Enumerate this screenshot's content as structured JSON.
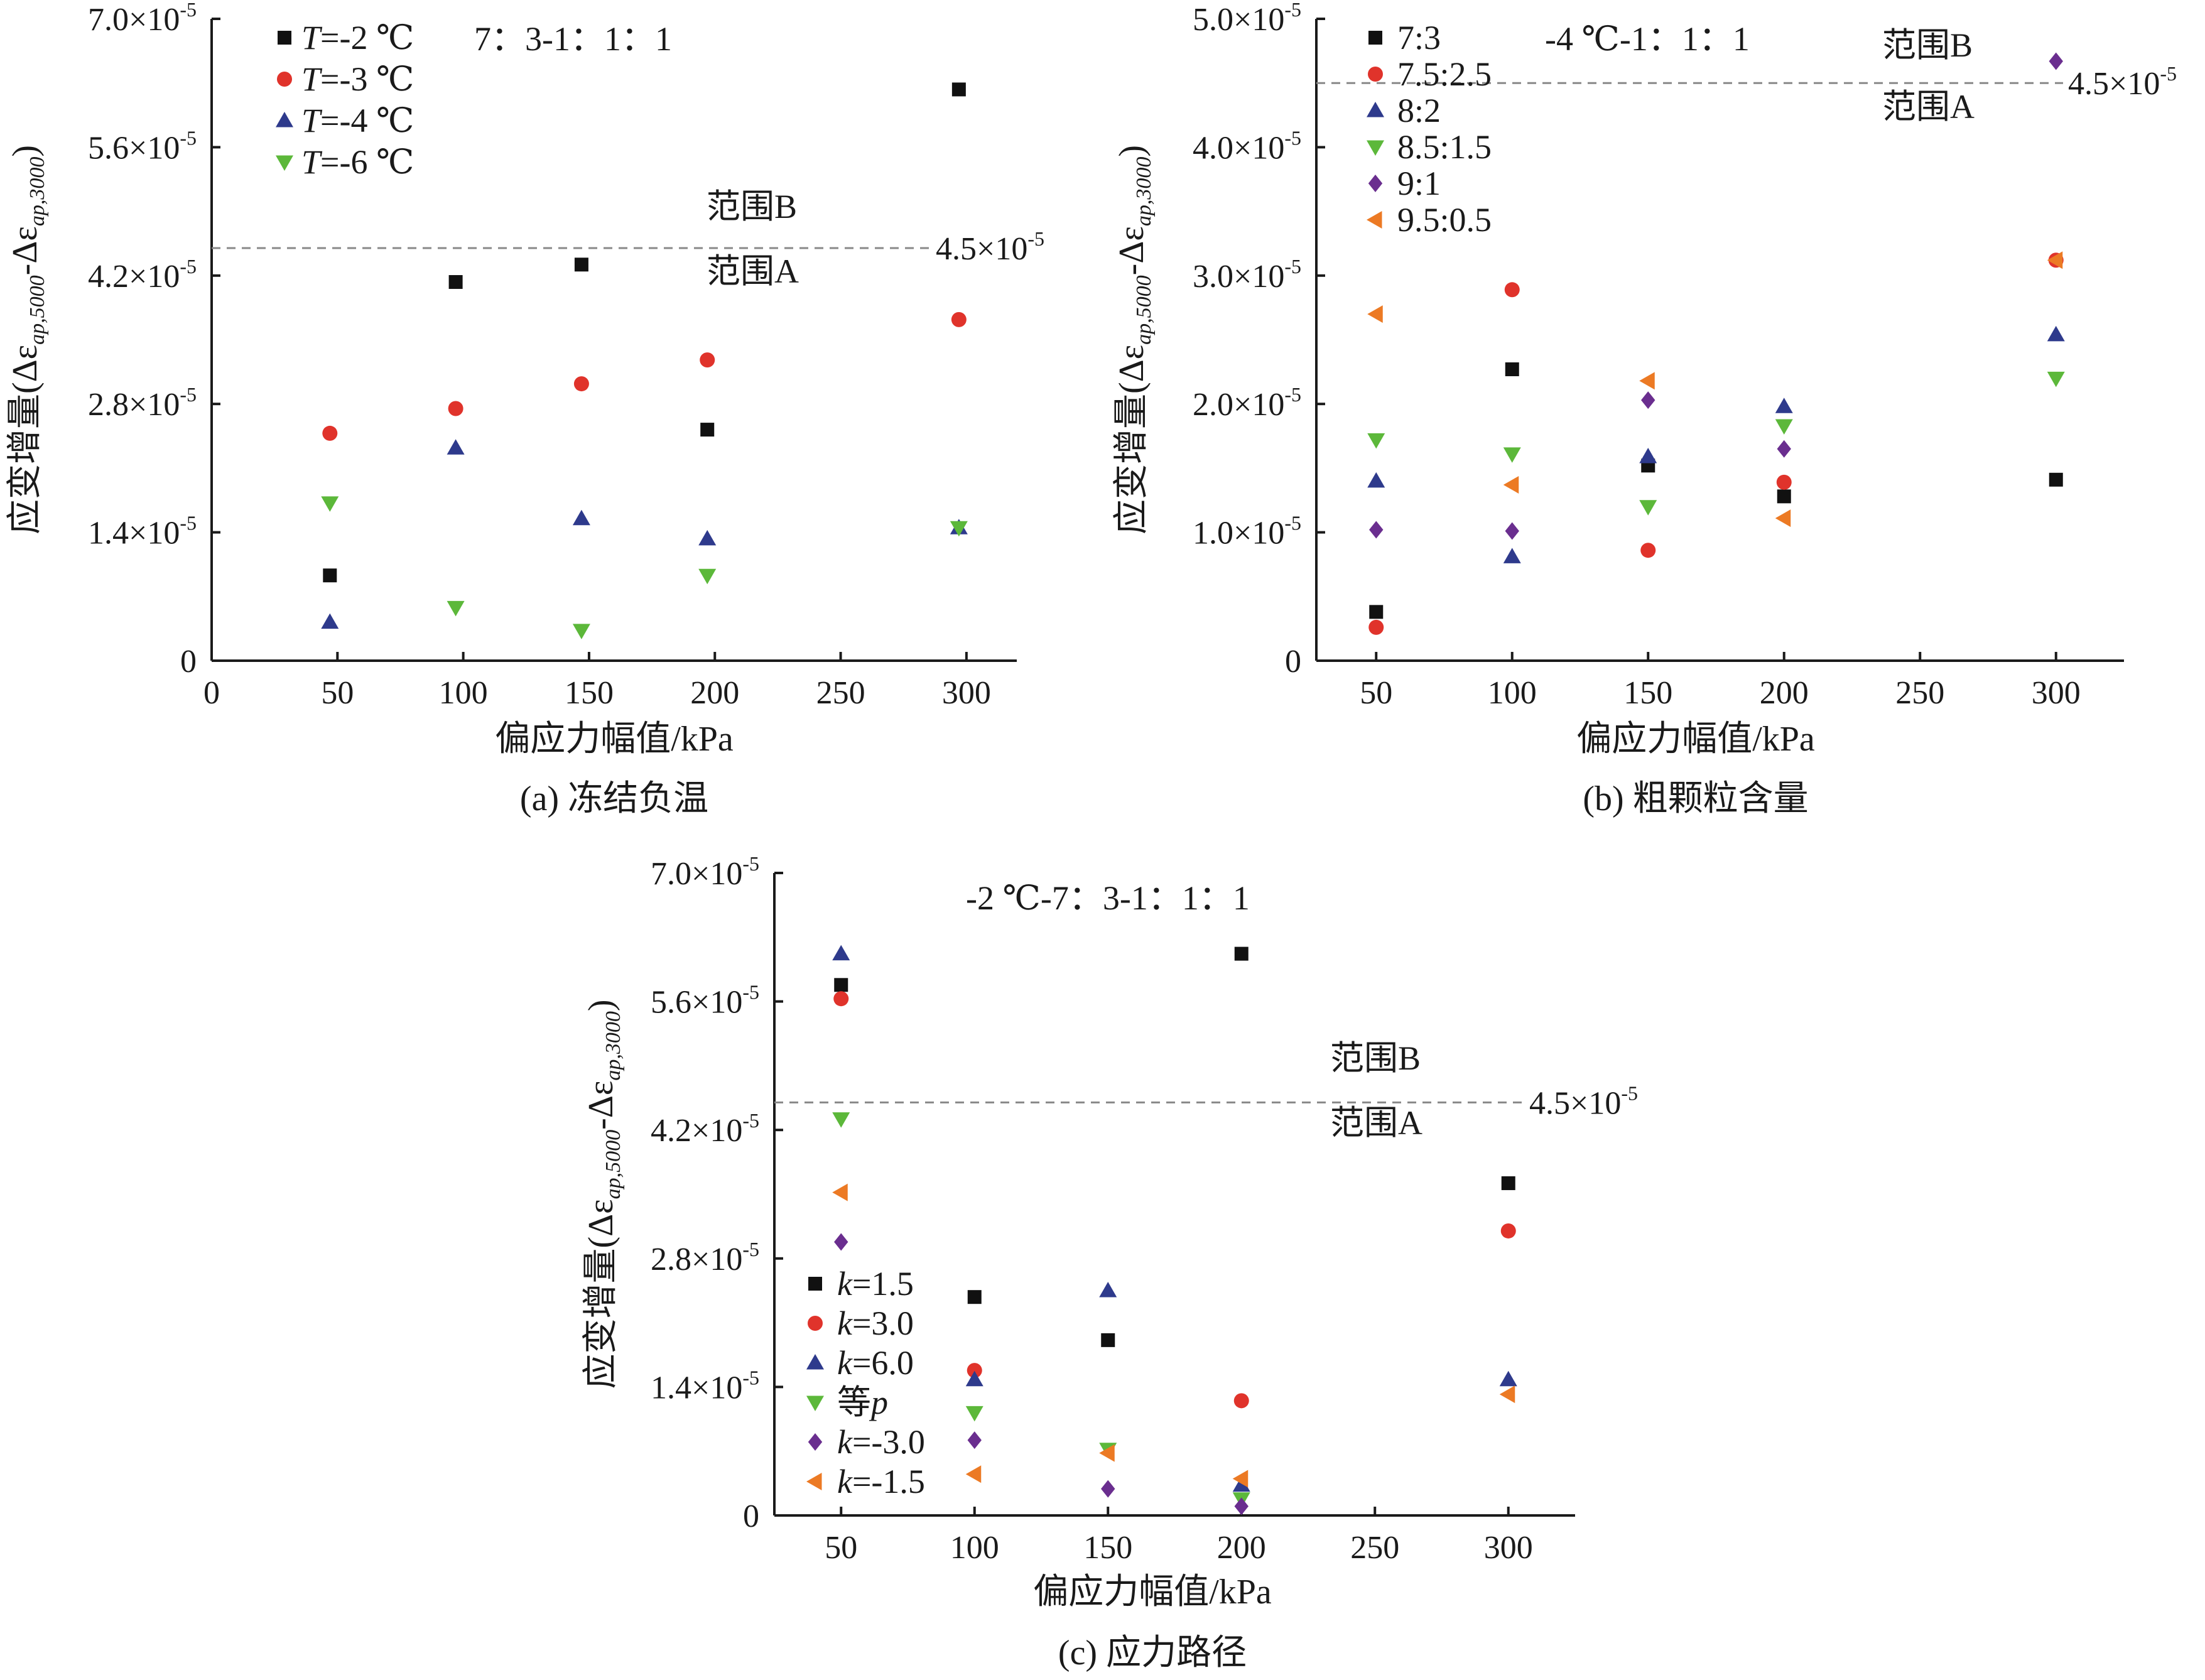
{
  "chart_data": [
    {
      "id": "a",
      "type": "scatter",
      "caption": "(a) 冻结负温",
      "xlabel": "偏应力幅值/kPa",
      "ylabel_main": "应变增量",
      "ylabel_formula": [
        "(Δε",
        "ap,5000",
        "-Δε",
        "ap,3000",
        ")"
      ],
      "xlim": [
        0,
        320
      ],
      "ylim": [
        0,
        7e-05
      ],
      "xticks": [
        0,
        50,
        100,
        150,
        200,
        250,
        300
      ],
      "xtick_labels": [
        "0",
        "50",
        "100",
        "150",
        "200",
        "250",
        "300"
      ],
      "yticks": [
        0,
        1.4e-05,
        2.8e-05,
        4.2e-05,
        5.6e-05,
        7e-05
      ],
      "ytick_labels": [
        {
          "mant": "0",
          "exp": ""
        },
        {
          "mant": "1.4×10",
          "exp": "-5"
        },
        {
          "mant": "2.8×10",
          "exp": "-5"
        },
        {
          "mant": "4.2×10",
          "exp": "-5"
        },
        {
          "mant": "5.6×10",
          "exp": "-5"
        },
        {
          "mant": "7.0×10",
          "exp": "-5"
        }
      ],
      "annotation": "7：3-1：1：1",
      "threshold": {
        "value": 4.5e-05,
        "label": "4.5×10",
        "label_exp": "-5",
        "above": "范围B",
        "below": "范围A"
      },
      "series": [
        {
          "name": "T=-2 ℃",
          "legend_pre": "T",
          "legend_post": "=-2 ℃",
          "italic_pre": true,
          "marker": "square",
          "color": "#111111",
          "points": [
            [
              47,
              9.3e-06
            ],
            [
              97,
              4.13e-05
            ],
            [
              147,
              4.32e-05
            ],
            [
              197,
              2.52e-05
            ],
            [
              297,
              6.23e-05
            ]
          ]
        },
        {
          "name": "T=-3 ℃",
          "legend_pre": "T",
          "legend_post": "=-3 ℃",
          "italic_pre": true,
          "marker": "circle",
          "color": "#e0332b",
          "points": [
            [
              47,
              2.48e-05
            ],
            [
              97,
              2.75e-05
            ],
            [
              147,
              3.02e-05
            ],
            [
              197,
              3.28e-05
            ],
            [
              297,
              3.72e-05
            ]
          ]
        },
        {
          "name": "T=-4 ℃",
          "legend_pre": "T",
          "legend_post": "=-4 ℃",
          "italic_pre": true,
          "marker": "triangle-up",
          "color": "#2e3a8c",
          "points": [
            [
              47,
              4.2e-06
            ],
            [
              97,
              2.32e-05
            ],
            [
              147,
              1.55e-05
            ],
            [
              197,
              1.33e-05
            ],
            [
              297,
              1.45e-05
            ]
          ]
        },
        {
          "name": "T=-6 ℃",
          "legend_pre": "T",
          "legend_post": "=-6 ℃",
          "italic_pre": true,
          "marker": "triangle-down",
          "color": "#5cb83a",
          "points": [
            [
              47,
              1.72e-05
            ],
            [
              97,
              5.8e-06
            ],
            [
              147,
              3.3e-06
            ],
            [
              197,
              9.3e-06
            ],
            [
              297,
              1.45e-05
            ]
          ]
        }
      ]
    },
    {
      "id": "b",
      "type": "scatter",
      "caption": "(b) 粗颗粒含量",
      "xlabel": "偏应力幅值/kPa",
      "ylabel_main": "应变增量",
      "ylabel_formula": [
        "(Δε",
        "ap,5000",
        "-Δε",
        "ap,3000",
        ")"
      ],
      "xlim": [
        28,
        325
      ],
      "ylim": [
        0,
        5e-05
      ],
      "xticks": [
        50,
        100,
        150,
        200,
        250,
        300
      ],
      "xtick_labels": [
        "50",
        "100",
        "150",
        "200",
        "250",
        "300"
      ],
      "yticks": [
        0,
        1e-05,
        2e-05,
        3e-05,
        4e-05,
        5e-05
      ],
      "ytick_labels": [
        {
          "mant": "0",
          "exp": ""
        },
        {
          "mant": "1.0×10",
          "exp": "-5"
        },
        {
          "mant": "2.0×10",
          "exp": "-5"
        },
        {
          "mant": "3.0×10",
          "exp": "-5"
        },
        {
          "mant": "4.0×10",
          "exp": "-5"
        },
        {
          "mant": "5.0×10",
          "exp": "-5"
        }
      ],
      "annotation": "-4 ℃-1：1：1",
      "threshold": {
        "value": 4.5e-05,
        "label": "4.5×10",
        "label_exp": "-5",
        "above": "范围B",
        "below": "范围A"
      },
      "series": [
        {
          "name": "7:3",
          "legend_pre": "",
          "legend_post": "7:3",
          "italic_pre": false,
          "marker": "square",
          "color": "#111111",
          "points": [
            [
              50,
              3.8e-06
            ],
            [
              100,
              2.27e-05
            ],
            [
              150,
              1.52e-05
            ],
            [
              200,
              1.28e-05
            ],
            [
              300,
              1.41e-05
            ]
          ]
        },
        {
          "name": "7.5:2.5",
          "legend_pre": "",
          "legend_post": "7.5:2.5",
          "italic_pre": false,
          "marker": "circle",
          "color": "#e0332b",
          "points": [
            [
              50,
              2.6e-06
            ],
            [
              100,
              2.89e-05
            ],
            [
              150,
              8.6e-06
            ],
            [
              200,
              1.39e-05
            ],
            [
              300,
              3.12e-05
            ]
          ]
        },
        {
          "name": "8:2",
          "legend_pre": "",
          "legend_post": "8:2",
          "italic_pre": false,
          "marker": "triangle-up",
          "color": "#2e3a8c",
          "points": [
            [
              50,
              1.4e-05
            ],
            [
              100,
              8.1e-06
            ],
            [
              150,
              1.59e-05
            ],
            [
              200,
              1.98e-05
            ],
            [
              300,
              2.54e-05
            ]
          ]
        },
        {
          "name": "8.5:1.5",
          "legend_pre": "",
          "legend_post": "8.5:1.5",
          "italic_pre": false,
          "marker": "triangle-down",
          "color": "#5cb83a",
          "points": [
            [
              50,
              1.72e-05
            ],
            [
              100,
              1.61e-05
            ],
            [
              150,
              1.2e-05
            ],
            [
              200,
              1.83e-05
            ],
            [
              300,
              2.2e-05
            ]
          ]
        },
        {
          "name": "9:1",
          "legend_pre": "",
          "legend_post": "9:1",
          "italic_pre": false,
          "marker": "diamond",
          "color": "#6a2e8f",
          "points": [
            [
              50,
              1.02e-05
            ],
            [
              100,
              1.01e-05
            ],
            [
              150,
              2.03e-05
            ],
            [
              200,
              1.65e-05
            ],
            [
              300,
              4.67e-05
            ]
          ]
        },
        {
          "name": "9.5:0.5",
          "legend_pre": "",
          "legend_post": "9.5:0.5",
          "italic_pre": false,
          "marker": "triangle-left",
          "color": "#ec7a24",
          "points": [
            [
              50,
              2.7e-05
            ],
            [
              100,
              1.37e-05
            ],
            [
              150,
              2.18e-05
            ],
            [
              200,
              1.11e-05
            ],
            [
              300,
              3.12e-05
            ]
          ]
        }
      ]
    },
    {
      "id": "c",
      "type": "scatter",
      "caption": "(c) 应力路径",
      "xlabel": "偏应力幅值/kPa",
      "ylabel_main": "应变增量",
      "ylabel_formula": [
        "(Δε",
        "ap,5000",
        "-Δε",
        "ap,3000",
        ")"
      ],
      "xlim": [
        25,
        325
      ],
      "ylim": [
        0,
        7e-05
      ],
      "xticks": [
        50,
        100,
        150,
        200,
        250,
        300
      ],
      "xtick_labels": [
        "50",
        "100",
        "150",
        "200",
        "250",
        "300"
      ],
      "yticks": [
        0,
        1.4e-05,
        2.8e-05,
        4.2e-05,
        5.6e-05,
        7e-05
      ],
      "ytick_labels": [
        {
          "mant": "0",
          "exp": ""
        },
        {
          "mant": "1.4×10",
          "exp": "-5"
        },
        {
          "mant": "2.8×10",
          "exp": "-5"
        },
        {
          "mant": "4.2×10",
          "exp": "-5"
        },
        {
          "mant": "5.6×10",
          "exp": "-5"
        },
        {
          "mant": "7.0×10",
          "exp": "-5"
        }
      ],
      "annotation": "-2 ℃-7：3-1：1：1",
      "threshold": {
        "value": 4.5e-05,
        "label": "4.5×10",
        "label_exp": "-5",
        "above": "范围B",
        "below": "范围A"
      },
      "series": [
        {
          "name": "k=1.5",
          "legend_pre": "k",
          "legend_post": "=1.5",
          "italic_pre": true,
          "marker": "square",
          "color": "#111111",
          "points": [
            [
              50,
              5.78e-05
            ],
            [
              100,
              2.38e-05
            ],
            [
              150,
              1.91e-05
            ],
            [
              200,
              6.12e-05
            ],
            [
              300,
              3.62e-05
            ]
          ]
        },
        {
          "name": "k=3.0",
          "legend_pre": "k",
          "legend_post": "=3.0",
          "italic_pre": true,
          "marker": "circle",
          "color": "#e0332b",
          "points": [
            [
              50,
              5.63e-05
            ],
            [
              100,
              1.58e-05
            ],
            [
              200,
              1.25e-05
            ],
            [
              300,
              3.1e-05
            ]
          ]
        },
        {
          "name": "k=6.0",
          "legend_pre": "k",
          "legend_post": "=6.0",
          "italic_pre": true,
          "marker": "triangle-up",
          "color": "#2e3a8c",
          "points": [
            [
              50,
              6.12e-05
            ],
            [
              100,
              1.48e-05
            ],
            [
              150,
              2.45e-05
            ],
            [
              200,
              3.3e-06
            ],
            [
              300,
              1.48e-05
            ]
          ]
        },
        {
          "name": "等p",
          "legend_pre": "等",
          "legend_post": "p",
          "italic_pre": false,
          "italic_post": true,
          "marker": "triangle-down",
          "color": "#5cb83a",
          "points": [
            [
              50,
              4.32e-05
            ],
            [
              100,
              1.12e-05
            ],
            [
              150,
              7.2e-06
            ],
            [
              200,
              1.8e-06
            ]
          ]
        },
        {
          "name": "k=-3.0",
          "legend_pre": "k",
          "legend_post": "=-3.0",
          "italic_pre": true,
          "marker": "diamond",
          "color": "#6a2e8f",
          "points": [
            [
              50,
              2.98e-05
            ],
            [
              100,
              8.2e-06
            ],
            [
              150,
              2.9e-06
            ],
            [
              200,
              1e-06
            ]
          ]
        },
        {
          "name": "k=-1.5",
          "legend_pre": "k",
          "legend_post": "=-1.5",
          "italic_pre": true,
          "marker": "triangle-left",
          "color": "#ec7a24",
          "points": [
            [
              50,
              3.52e-05
            ],
            [
              100,
              4.5e-06
            ],
            [
              150,
              6.8e-06
            ],
            [
              200,
              4e-06
            ],
            [
              300,
              1.32e-05
            ]
          ]
        }
      ]
    }
  ]
}
